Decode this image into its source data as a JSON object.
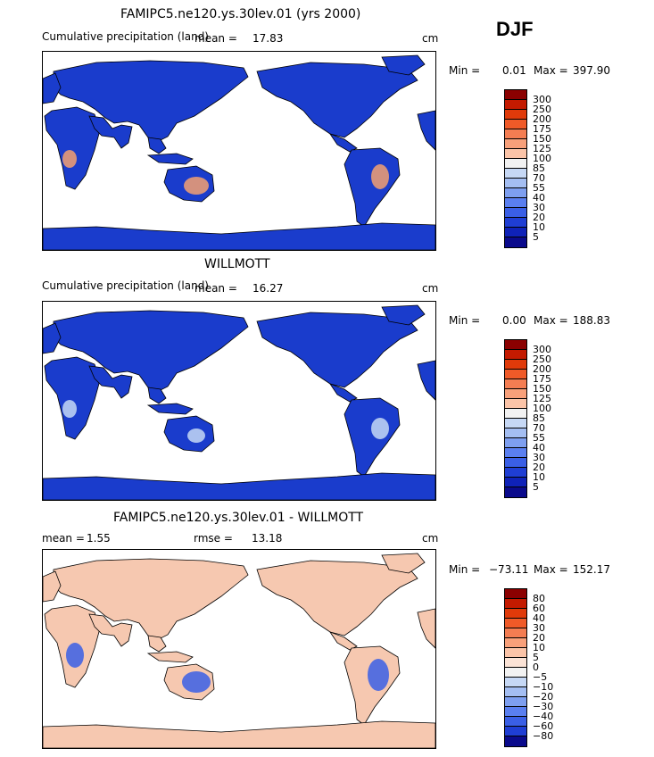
{
  "season": "DJF",
  "panels": [
    {
      "title": "FAMIPC5.ne120.ys.30lev.01 (yrs 2000)",
      "field_label": "Cumulative precipitation (land)",
      "stat_label": "mean =",
      "stat_value": "17.83",
      "units": "cm",
      "min_label": "Min =",
      "min_value": "0.01",
      "max_label": "Max =",
      "max_value": "397.90",
      "colorbar_levels": [
        "300",
        "250",
        "200",
        "175",
        "150",
        "125",
        "100",
        "85",
        "70",
        "55",
        "40",
        "30",
        "20",
        "10",
        "5"
      ],
      "colorbar_colors": [
        "#8b0000",
        "#c41a00",
        "#e03a0a",
        "#f05a28",
        "#f47d52",
        "#f8a07a",
        "#fbc4a8",
        "#f2f2f2",
        "#c6d8f5",
        "#a4bef2",
        "#7e9ff0",
        "#5a7ff0",
        "#3a5fe6",
        "#1f3ed4",
        "#0f22b8",
        "#0a0a8c"
      ],
      "land_color": "#1a3ccc",
      "highlight_color": "#f4a070"
    },
    {
      "title": "WILLMOTT",
      "field_label": "Cumulative precipitation (land)",
      "stat_label": "mean =",
      "stat_value": "16.27",
      "units": "cm",
      "min_label": "Min =",
      "min_value": "0.00",
      "max_label": "Max =",
      "max_value": "188.83",
      "colorbar_levels": [
        "300",
        "250",
        "200",
        "175",
        "150",
        "125",
        "100",
        "85",
        "70",
        "55",
        "40",
        "30",
        "20",
        "10",
        "5"
      ],
      "colorbar_colors": [
        "#8b0000",
        "#c41a00",
        "#e03a0a",
        "#f05a28",
        "#f47d52",
        "#f8a07a",
        "#fbc4a8",
        "#f2f2f2",
        "#c6d8f5",
        "#a4bef2",
        "#7e9ff0",
        "#5a7ff0",
        "#3a5fe6",
        "#1f3ed4",
        "#0f22b8",
        "#0a0a8c"
      ],
      "land_color": "#1a3ccc",
      "highlight_color": "#c6d8f5"
    },
    {
      "title": "FAMIPC5.ne120.ys.30lev.01 - WILLMOTT",
      "field_label": "mean =",
      "stat_label": "rmse =",
      "stat_value": "13.18",
      "mean_value": "1.55",
      "units": "cm",
      "min_label": "Min =",
      "min_value": "−73.11",
      "max_label": "Max =",
      "max_value": "152.17",
      "colorbar_levels": [
        "80",
        "60",
        "40",
        "30",
        "20",
        "10",
        "5",
        "0",
        "−5",
        "−10",
        "−20",
        "−30",
        "−40",
        "−60",
        "−80"
      ],
      "colorbar_colors": [
        "#8b0000",
        "#c41a00",
        "#e03a0a",
        "#f05a28",
        "#f47d52",
        "#f8a07a",
        "#fbc4a8",
        "#fbe3d6",
        "#f2f2f2",
        "#c6d8f5",
        "#a4bef2",
        "#7e9ff0",
        "#5a7ff0",
        "#3a5fe6",
        "#1f3ed4",
        "#0a0a8c"
      ],
      "land_color": "#f6c8b0",
      "highlight_color": "#3a5fe6"
    }
  ],
  "chart_data": [
    {
      "type": "heatmap",
      "title": "FAMIPC5.ne120.ys.30lev.01 (yrs 2000)",
      "variable": "Cumulative precipitation (land)",
      "units": "cm",
      "mean": 17.83,
      "min": 0.01,
      "max": 397.9,
      "levels": [
        5,
        10,
        20,
        30,
        40,
        55,
        70,
        85,
        100,
        125,
        150,
        175,
        200,
        250,
        300
      ]
    },
    {
      "type": "heatmap",
      "title": "WILLMOTT",
      "variable": "Cumulative precipitation (land)",
      "units": "cm",
      "mean": 16.27,
      "min": 0.0,
      "max": 188.83,
      "levels": [
        5,
        10,
        20,
        30,
        40,
        55,
        70,
        85,
        100,
        125,
        150,
        175,
        200,
        250,
        300
      ]
    },
    {
      "type": "heatmap",
      "title": "FAMIPC5.ne120.ys.30lev.01 - WILLMOTT",
      "units": "cm",
      "mean": 1.55,
      "rmse": 13.18,
      "min": -73.11,
      "max": 152.17,
      "levels": [
        -80,
        -60,
        -40,
        -30,
        -20,
        -10,
        -5,
        0,
        5,
        10,
        20,
        30,
        40,
        60,
        80
      ]
    }
  ]
}
